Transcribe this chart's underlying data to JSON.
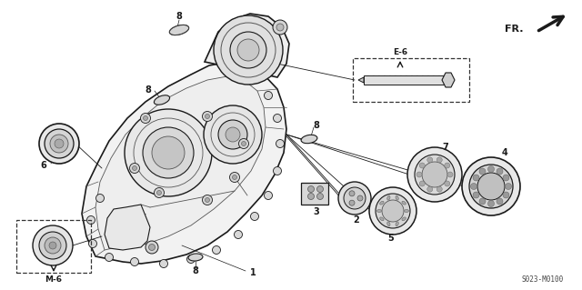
{
  "bg_color": "#ffffff",
  "fig_width": 6.4,
  "fig_height": 3.19,
  "dpi": 100,
  "diagram_code": "S023-M0100",
  "fr_label": "FR.",
  "e6_label": "E-6",
  "m6_label": "M-6"
}
